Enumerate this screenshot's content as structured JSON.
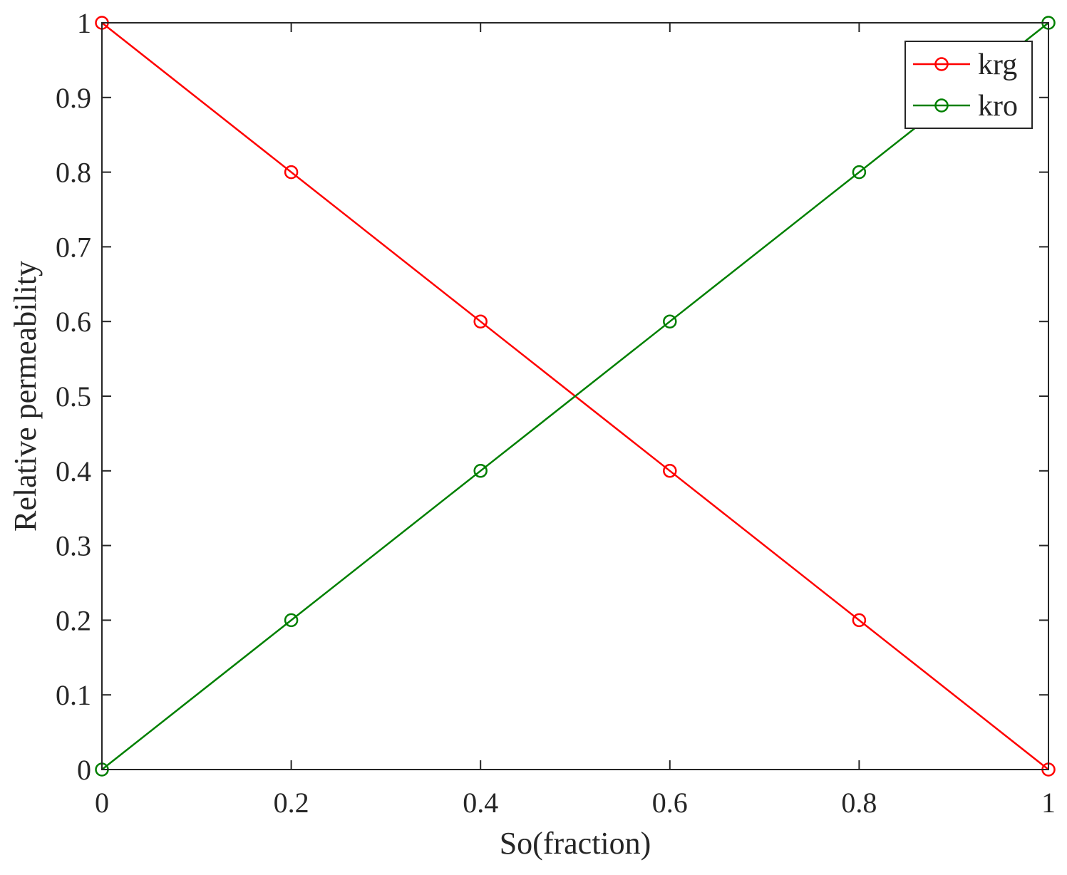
{
  "chart_data": {
    "type": "line",
    "title": "",
    "xlabel": "So(fraction)",
    "ylabel": "Relative permeability",
    "xlim": [
      0,
      1
    ],
    "ylim": [
      0,
      1
    ],
    "x": [
      0,
      0.2,
      0.4,
      0.6,
      0.8,
      1
    ],
    "xticks": [
      {
        "value": 0,
        "label": "0"
      },
      {
        "value": 0.2,
        "label": "0.2"
      },
      {
        "value": 0.4,
        "label": "0.4"
      },
      {
        "value": 0.6,
        "label": "0.6"
      },
      {
        "value": 0.8,
        "label": "0.8"
      },
      {
        "value": 1,
        "label": "1"
      }
    ],
    "yticks": [
      {
        "value": 0,
        "label": "0"
      },
      {
        "value": 0.1,
        "label": "0.1"
      },
      {
        "value": 0.2,
        "label": "0.2"
      },
      {
        "value": 0.3,
        "label": "0.3"
      },
      {
        "value": 0.4,
        "label": "0.4"
      },
      {
        "value": 0.5,
        "label": "0.5"
      },
      {
        "value": 0.6,
        "label": "0.6"
      },
      {
        "value": 0.7,
        "label": "0.7"
      },
      {
        "value": 0.8,
        "label": "0.8"
      },
      {
        "value": 0.9,
        "label": "0.9"
      },
      {
        "value": 1,
        "label": "1"
      }
    ],
    "series": [
      {
        "name": "krg",
        "color": "#ff0000",
        "marker": "circle",
        "values": [
          1,
          0.8,
          0.6,
          0.4,
          0.2,
          0
        ]
      },
      {
        "name": "kro",
        "color": "#008000",
        "marker": "circle",
        "values": [
          0,
          0.2,
          0.4,
          0.6,
          0.8,
          1
        ]
      }
    ],
    "grid": false,
    "legend_position": "top-right"
  }
}
